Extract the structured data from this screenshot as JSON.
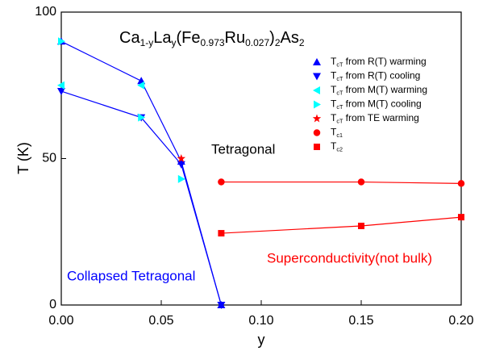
{
  "chart_data": {
    "type": "scatter",
    "title": "Ca1-yLay(Fe0.973Ru0.027)2As2",
    "x_label": "y",
    "y_label": "T (K)",
    "annotations": [
      {
        "text": "Tetragonal",
        "color": "#000000"
      },
      {
        "text": "Collapsed Tetragonal",
        "color": "#0000ff"
      },
      {
        "text": "Superconductivity(not bulk)",
        "color": "#ff0000"
      }
    ],
    "xlim": [
      0,
      0.2
    ],
    "ylim": [
      0,
      100
    ],
    "xticks": [
      {
        "value": 0,
        "label": "0.00"
      },
      {
        "value": 0.05,
        "label": "0.05"
      },
      {
        "value": 0.1,
        "label": "0.10"
      },
      {
        "value": 0.15,
        "label": "0.15"
      },
      {
        "value": 0.2,
        "label": "0.20"
      }
    ],
    "yticks": [
      0,
      50,
      100
    ],
    "series": [
      {
        "name": "TcT from R(T) warming",
        "color": "#0000ff",
        "marker": "triangle-up",
        "line": true,
        "x": [
          0,
          0.04,
          0.06,
          0.08
        ],
        "values": [
          90,
          76.5,
          49,
          0
        ]
      },
      {
        "name": "TcT from R(T) cooling",
        "color": "#0000ff",
        "marker": "triangle-down",
        "line": true,
        "x": [
          0,
          0.04,
          0.06,
          0.08
        ],
        "values": [
          73,
          64,
          48,
          0
        ]
      },
      {
        "name": "TcT from M(T) warming",
        "color": "#00ffff",
        "marker": "triangle-left",
        "line": false,
        "x": [
          0,
          0.04
        ],
        "values": [
          75,
          75
        ]
      },
      {
        "name": "TcT from M(T) cooling",
        "color": "#00ffff",
        "marker": "triangle-right",
        "line": false,
        "x": [
          0,
          0.04,
          0.06
        ],
        "values": [
          90,
          64,
          43
        ]
      },
      {
        "name": "TcT from TE warming",
        "color": "#ff0000",
        "marker": "star",
        "line": false,
        "x": [
          0.06
        ],
        "values": [
          50
        ]
      },
      {
        "name": "Tc1",
        "color": "#ff0000",
        "marker": "circle",
        "line": true,
        "x": [
          0.08,
          0.15,
          0.2
        ],
        "values": [
          42,
          42,
          41.5
        ]
      },
      {
        "name": "Tc2",
        "color": "#ff0000",
        "marker": "square",
        "line": true,
        "x": [
          0.08,
          0.15,
          0.2
        ],
        "values": [
          24.5,
          27,
          30
        ]
      }
    ]
  }
}
